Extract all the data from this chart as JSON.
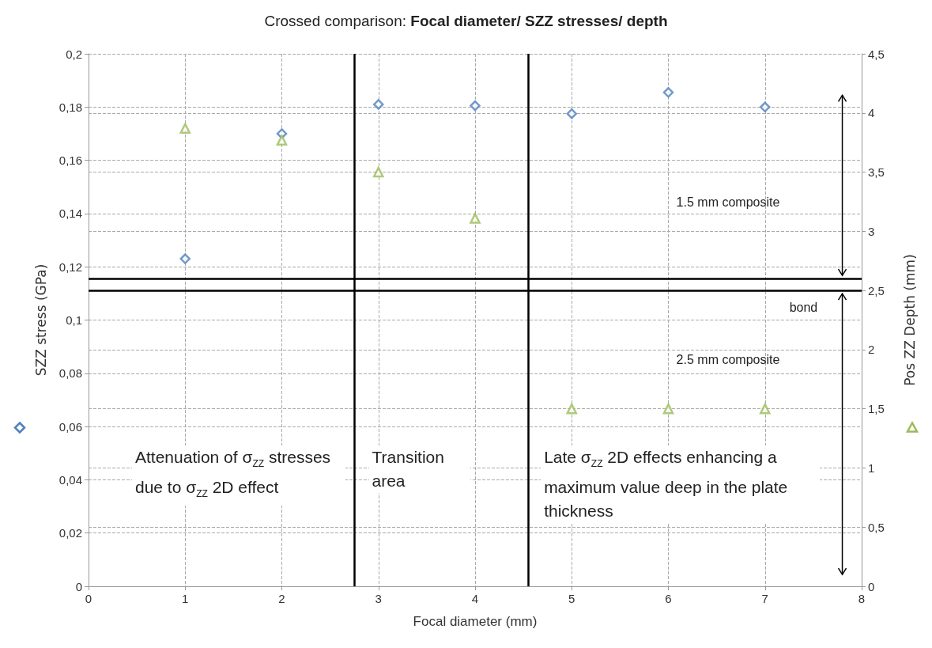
{
  "chart_data": {
    "type": "scatter",
    "title": "Crossed comparison: Focal diameter/ SZZ stresses/ depth",
    "xlabel": "Focal diameter (mm)",
    "ylabel": "SZZ stress (GPa)",
    "y2label": "Pos ZZ Depth (mm)",
    "x": [
      1,
      2,
      3,
      4,
      5,
      6,
      7
    ],
    "series": [
      {
        "color": "#4f81bd",
        "marker": "diamond",
        "values": [
          0.123,
          0.17,
          0.181,
          0.1805,
          0.1775,
          0.1855,
          0.18
        ]
      },
      {
        "color": "#9bbb59",
        "marker": "triangle",
        "axis": "y2",
        "values": [
          3.87,
          3.77,
          3.5,
          3.11,
          1.5,
          1.5,
          1.5
        ]
      }
    ],
    "xlim": [
      0,
      8
    ],
    "xticks": [
      0,
      1,
      2,
      3,
      4,
      5,
      6,
      7,
      8
    ],
    "ylim": [
      0,
      0.2
    ],
    "yticks": [
      {
        "value": 0,
        "label": "0"
      },
      {
        "value": 0.02,
        "label": "0,02"
      },
      {
        "value": 0.04,
        "label": "0,04"
      },
      {
        "value": 0.06,
        "label": "0,06"
      },
      {
        "value": 0.08,
        "label": "0,08"
      },
      {
        "value": 0.1,
        "label": "0,1"
      },
      {
        "value": 0.12,
        "label": "0,12"
      },
      {
        "value": 0.14,
        "label": "0,14"
      },
      {
        "value": 0.16,
        "label": "0,16"
      },
      {
        "value": 0.18,
        "label": "0,18"
      },
      {
        "value": 0.2,
        "label": "0,2"
      }
    ],
    "y2lim": [
      0,
      4.5
    ],
    "y2ticks": [
      0,
      {
        "value": 0.5,
        "label": "0,5"
      },
      1,
      {
        "value": 1.5,
        "label": "1,5"
      },
      2,
      {
        "value": 2.5,
        "label": "2,5"
      },
      3,
      {
        "value": 3.5,
        "label": "3,5"
      },
      4,
      {
        "value": 4.5,
        "label": "4,5"
      }
    ],
    "ref_lines": [
      {
        "axis": "x",
        "value": 2.75,
        "color": "#000000"
      },
      {
        "axis": "x",
        "value": 4.55,
        "color": "#000000"
      },
      {
        "axis": "y2",
        "value": 2.6,
        "color": "#000000"
      },
      {
        "axis": "y2",
        "value": 2.5,
        "color": "#000000"
      }
    ],
    "annotations": [
      "Attenuation of σ$_{ZZ}$ stresses due to σ$_{ZZ}$ 2D effect",
      "Transition area",
      "Late σ$_{ZZ}$ 2D effects enhancing a maximum value deep in the plate thickness",
      "1.5 mm composite",
      "bond",
      "2.5 mm composite"
    ],
    "grid": true
  }
}
